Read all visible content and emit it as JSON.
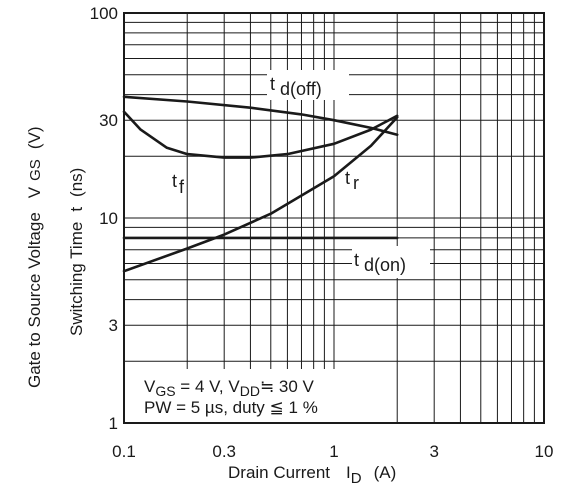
{
  "chart_data": {
    "type": "line",
    "x_scale": "log",
    "y_scale": "log",
    "xlim": [
      0.1,
      10
    ],
    "ylim": [
      1,
      100
    ],
    "xlabel": "Drain Current",
    "xlabel_symbol": {
      "base": "I",
      "sub": "D",
      "unit": "(A)"
    },
    "ylabel_outer": {
      "text": "Gate to Source Voltage",
      "symbol_base": "V",
      "symbol_sub": "GS",
      "unit": "(V)"
    },
    "ylabel_inner": {
      "text": "Switching Time",
      "symbol": "t",
      "unit": "(ns)"
    },
    "x_ticks": [
      {
        "value": 0.1,
        "label": "0.1"
      },
      {
        "value": 0.3,
        "label": "0.3"
      },
      {
        "value": 1,
        "label": "1"
      },
      {
        "value": 3,
        "label": "3"
      },
      {
        "value": 10,
        "label": "10"
      }
    ],
    "y_ticks": [
      {
        "value": 1,
        "label": "1"
      },
      {
        "value": 3,
        "label": "3"
      },
      {
        "value": 10,
        "label": "10"
      },
      {
        "value": 30,
        "label": "30"
      },
      {
        "value": 100,
        "label": "100"
      }
    ],
    "grid": true,
    "series": [
      {
        "name": "td(off)",
        "label_base": "t",
        "label_sub": "d(off)",
        "x": [
          0.1,
          0.2,
          0.4,
          0.7,
          1.0,
          1.5,
          2.0
        ],
        "y": [
          39,
          37,
          34.5,
          32,
          30,
          27.5,
          25.5
        ]
      },
      {
        "name": "tf",
        "label_base": "t",
        "label_sub": "f",
        "x": [
          0.1,
          0.12,
          0.16,
          0.2,
          0.3,
          0.4,
          0.6,
          1.0,
          1.5,
          2.0
        ],
        "y": [
          33,
          27,
          22,
          20.5,
          19.7,
          19.7,
          20.5,
          23,
          27,
          31.5
        ]
      },
      {
        "name": "tr",
        "label_base": "t",
        "label_sub": "r",
        "x": [
          0.1,
          0.2,
          0.3,
          0.5,
          1.0,
          1.5,
          2.0
        ],
        "y": [
          5.5,
          7.1,
          8.3,
          10.5,
          16,
          22.5,
          31
        ]
      },
      {
        "name": "td(on)",
        "label_base": "t",
        "label_sub": "d(on)",
        "x": [
          0.1,
          2.0
        ],
        "y": [
          8.0,
          8.0
        ]
      }
    ],
    "conditions": {
      "line1": {
        "vgs": "V",
        "vgs_sub": "GS",
        "vgs_val": " = 4 V, V",
        "vdd_sub": "DD",
        "approx": "≒",
        "vdd_val": " 30 V"
      },
      "line2": {
        "pw": "PW = 5 µs, duty ",
        "le": "≦",
        "duty_val": " 1 %"
      }
    }
  }
}
